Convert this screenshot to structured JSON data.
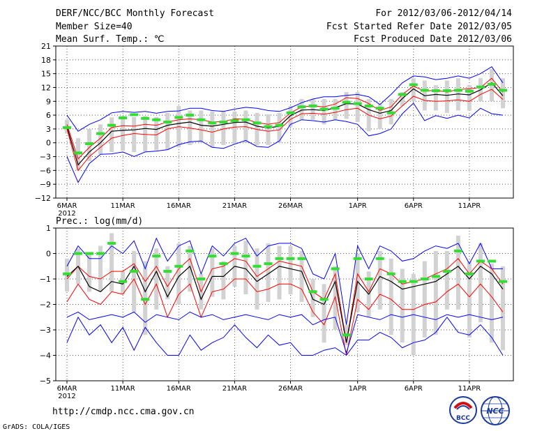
{
  "header": {
    "left1": "DERF/NCC/BCC Monthly Forecast",
    "left2": "Member Size=40",
    "left3": "Mean Surf. Temp.: ℃",
    "right1": "For 2012/03/06-2012/04/14",
    "right2": "Fcst Started Refer Date 2012/03/05",
    "right3": "Fcst Produced Date 2012/03/06"
  },
  "footer": {
    "url": "http://cmdp.ncc.cma.gov.cn",
    "credit": "GrADS: COLA/IGES",
    "logo1_text": "BCC",
    "logo2_text": "NCC"
  },
  "colors": {
    "mean": "#000000",
    "pct": "#ff0000",
    "extreme": "#0000ff",
    "box": "#d2d2d2",
    "obs": "#33dd33",
    "grid": "#555555"
  },
  "chart_data": [
    {
      "type": "line",
      "title": "Mean Surf. Temp.: ℃",
      "x_tick_labels": [
        "6MAR",
        "11MAR",
        "16MAR",
        "21MAR",
        "26MAR",
        "1APR",
        "6APR",
        "11APR"
      ],
      "x_tick_indices": [
        0,
        5,
        10,
        15,
        20,
        26,
        31,
        36
      ],
      "year_label": "2012",
      "ylim": [
        -12,
        21
      ],
      "yticks": [
        -12,
        -9,
        -6,
        -3,
        0,
        3,
        6,
        9,
        12,
        15,
        18,
        21
      ],
      "ytick_labels": [
        "−12",
        "−9",
        "−6",
        "−3",
        "0",
        "3",
        "6",
        "9",
        "12",
        "15",
        "18",
        "21"
      ],
      "days": 40,
      "series": [
        {
          "name": "max",
          "color": "#0000ff",
          "values": [
            6,
            2.5,
            4,
            5,
            6.5,
            6.8,
            6.6,
            6.8,
            6.4,
            6.8,
            6.9,
            7.5,
            7.5,
            7,
            6.8,
            7.3,
            7.7,
            7.5,
            7,
            6.8,
            7.6,
            8.7,
            9.5,
            10,
            10,
            10.3,
            10.5,
            10,
            8.3,
            10.5,
            13,
            14.5,
            14.3,
            13.7,
            14,
            14.5,
            14,
            15,
            16.5,
            13
          ]
        },
        {
          "name": "p75",
          "color": "#ff0000",
          "values": [
            4,
            -3.5,
            -1,
            1,
            3.3,
            3.7,
            3.6,
            4,
            3.8,
            4.5,
            5,
            5.2,
            5,
            4.5,
            4.6,
            5.2,
            5.1,
            4.4,
            4,
            4.4,
            6.5,
            7.8,
            8,
            7.8,
            8.4,
            9.8,
            9.6,
            8.5,
            7,
            7.8,
            10.5,
            12.3,
            11.2,
            11.4,
            11,
            11.6,
            11.7,
            12,
            14,
            11
          ]
        },
        {
          "name": "mean",
          "color": "#000000",
          "values": [
            3.5,
            -4.8,
            -2,
            0,
            2.5,
            2.7,
            2.8,
            3.1,
            2.9,
            3.8,
            4.2,
            4.5,
            3.8,
            3.6,
            4,
            4.4,
            4.5,
            3.6,
            3.2,
            3.6,
            5.9,
            7.1,
            7.2,
            7,
            7.6,
            8.5,
            8.4,
            7.2,
            6.4,
            7,
            9.6,
            11.7,
            10.2,
            10.5,
            10.3,
            10.6,
            10.4,
            11.5,
            13,
            10.2
          ]
        },
        {
          "name": "p25",
          "color": "#ff0000",
          "values": [
            3,
            -6,
            -3,
            -1,
            1,
            1.6,
            2,
            1.8,
            1.7,
            3,
            3.5,
            3.2,
            2.8,
            2.3,
            3,
            3.4,
            3.5,
            2.9,
            2.5,
            2.8,
            5.1,
            6.3,
            6.4,
            6.2,
            6.6,
            7.2,
            7.5,
            6,
            5.2,
            5.8,
            8,
            10.1,
            9.2,
            9,
            9.1,
            9.3,
            9,
            10.5,
            11.6,
            9.4
          ]
        },
        {
          "name": "min",
          "color": "#0000ff",
          "values": [
            -3,
            -8.6,
            -4.5,
            -2.5,
            -2.4,
            -2,
            -3,
            -2,
            -1.8,
            -1.5,
            -0.4,
            0.2,
            0.4,
            -1,
            -1.2,
            -0.3,
            0.5,
            -0.8,
            -1,
            0.4,
            4,
            5,
            4.8,
            4.5,
            5,
            4.6,
            4,
            1.5,
            2,
            3,
            6.3,
            8.6,
            4.8,
            5.9,
            5.3,
            6,
            5.4,
            7.5,
            6.3,
            6
          ]
        }
      ],
      "boxes_low": [
        2,
        -6,
        -4,
        -2.5,
        -2,
        -1.7,
        -2,
        -1.9,
        -1.6,
        -1.5,
        -1,
        -0.5,
        0,
        -1,
        -0.5,
        -0.3,
        0,
        -0.5,
        -0.5,
        0,
        3.5,
        5,
        5,
        4,
        5,
        5.2,
        4.5,
        2.5,
        3,
        4,
        8,
        9,
        7,
        7,
        6.5,
        7,
        7,
        9,
        9,
        7.5
      ],
      "boxes_high": [
        5,
        1,
        3,
        4,
        5.5,
        5.8,
        5.6,
        5.8,
        5.6,
        6.5,
        8,
        7,
        7,
        6.8,
        6.8,
        6.8,
        7,
        6.5,
        6.2,
        6.5,
        8,
        9.5,
        9.5,
        9.5,
        9.5,
        11,
        11,
        9.5,
        8.5,
        9.5,
        11,
        14,
        13.5,
        12.5,
        13.5,
        14,
        12.5,
        14,
        16,
        14
      ],
      "observed": [
        3.3,
        -2.2,
        -0.2,
        2,
        3.8,
        5.4,
        6.1,
        5.3,
        5,
        4.5,
        5.5,
        6,
        5,
        4.3,
        4.5,
        4.8,
        5,
        4.3,
        3.5,
        3.8,
        6.5,
        7.8,
        8,
        7.3,
        7.5,
        8.8,
        8.5,
        8,
        7.5,
        6.5,
        10.5,
        12.6,
        11.4,
        11.3,
        11.3,
        11.4,
        11.2,
        12.1,
        12.7,
        11.4
      ]
    },
    {
      "type": "line",
      "title": "Prec.: log(mm/d)",
      "x_tick_labels": [
        "6MAR",
        "11MAR",
        "16MAR",
        "21MAR",
        "26MAR",
        "1APR",
        "6APR",
        "11APR"
      ],
      "x_tick_indices": [
        0,
        5,
        10,
        15,
        20,
        26,
        31,
        36
      ],
      "year_label": "2012",
      "ylim": [
        -5,
        1
      ],
      "yticks": [
        -5,
        -4,
        -3,
        -2,
        -1,
        0,
        1
      ],
      "ytick_labels": [
        "−5",
        "−4",
        "−3",
        "−2",
        "−1",
        "0",
        "1"
      ],
      "days": 40,
      "series": [
        {
          "name": "max",
          "color": "#0000ff",
          "values": [
            -0.5,
            0.3,
            -0.2,
            -0.2,
            0.3,
            0,
            0.5,
            -0.6,
            0.6,
            -0.3,
            0.3,
            0.5,
            -0.8,
            0.3,
            -0.1,
            0.4,
            0.6,
            -0.1,
            0.3,
            0.4,
            0.4,
            0.2,
            -0.8,
            -1,
            0,
            -2.8,
            0.3,
            -0.6,
            0.3,
            0.1,
            -0.3,
            -0.2,
            0.1,
            0.3,
            0.2,
            0.4,
            -0.4,
            0.4,
            -0.6,
            -0.6
          ]
        },
        {
          "name": "p75",
          "color": "#ff0000",
          "values": [
            -1,
            -0.5,
            -0.9,
            -1,
            -0.7,
            -0.7,
            -0.4,
            -1.1,
            -0.5,
            -1.3,
            -0.6,
            -0.2,
            -1.5,
            -0.6,
            -0.5,
            -0.2,
            -0.3,
            -0.9,
            -0.6,
            -0.3,
            -0.4,
            -0.5,
            -1.5,
            -1.8,
            -0.8,
            -3.5,
            -0.8,
            -1.5,
            -0.6,
            -0.8,
            -1.2,
            -1.1,
            -1,
            -0.8,
            -0.6,
            -0.2,
            -0.8,
            -0.3,
            -0.6,
            -1.2
          ]
        },
        {
          "name": "mean",
          "color": "#000000",
          "values": [
            -0.9,
            -0.5,
            -1.3,
            -1.5,
            -1.1,
            -1.2,
            -0.5,
            -1.5,
            -0.7,
            -1.7,
            -0.9,
            -0.5,
            -1.8,
            -0.9,
            -0.9,
            -0.5,
            -0.6,
            -1.1,
            -0.8,
            -0.5,
            -0.6,
            -0.7,
            -1.8,
            -2,
            -1.1,
            -3.5,
            -1.1,
            -1.6,
            -0.9,
            -1.1,
            -1.4,
            -1.3,
            -1.2,
            -1.1,
            -0.8,
            -0.5,
            -1,
            -0.5,
            -0.8,
            -1.4
          ]
        },
        {
          "name": "p25",
          "color": "#ff0000",
          "values": [
            -1.9,
            -1.2,
            -1.8,
            -2,
            -1.5,
            -1.6,
            -1,
            -2,
            -1.2,
            -2.5,
            -1.6,
            -1.2,
            -2.5,
            -1.5,
            -1.4,
            -1,
            -1,
            -1.5,
            -1.4,
            -1.2,
            -1.2,
            -1.4,
            -2.3,
            -2.8,
            -1.7,
            -4,
            -1.8,
            -2.2,
            -1.6,
            -1.8,
            -2.2,
            -2.2,
            -2,
            -1.9,
            -1.5,
            -1.2,
            -1.7,
            -1.2,
            -1.7,
            -2.3
          ]
        },
        {
          "name": "min",
          "color": "#0000ff",
          "values": [
            -3.5,
            -2.5,
            -3.2,
            -2.8,
            -3.5,
            -2.9,
            -3.8,
            -2.9,
            -3.5,
            -4,
            -4,
            -3.2,
            -3.8,
            -3.5,
            -3.3,
            -2.8,
            -3.3,
            -3.7,
            -3.2,
            -3.6,
            -3.5,
            -4,
            -4,
            -3.8,
            -3.7,
            -4,
            -3.4,
            -3.4,
            -3.1,
            -3.3,
            -3.7,
            -3.5,
            -3.4,
            -3.1,
            -2.5,
            -3.1,
            -3.2,
            -2.8,
            -3.3,
            -4
          ]
        },
        {
          "name": "single",
          "color": "#0000ff",
          "values": [
            -2.5,
            -2.3,
            -2.6,
            -2.5,
            -2.4,
            -2.5,
            -2.3,
            -2.7,
            -2.4,
            -2.5,
            -2.6,
            -2.3,
            -2.5,
            -2.4,
            -2.6,
            -2.5,
            -2.4,
            -2.5,
            -2.6,
            -2.4,
            -2.5,
            -2.4,
            -2.8,
            -2.6,
            -2.5,
            -3.9,
            -2.4,
            -2.5,
            -2.6,
            -2.4,
            -2.5,
            -2.4,
            -2.5,
            -2.6,
            -2.4,
            -2.5,
            -2.4,
            -2.5,
            -2.6,
            -2.5
          ]
        }
      ],
      "boxes_low": [
        -1.5,
        -1.2,
        -1.5,
        -1.5,
        -1.5,
        -1.6,
        -2.3,
        -3.2,
        -2.2,
        -1.8,
        -2,
        -1.5,
        -2.2,
        -1.7,
        -1.8,
        -1.3,
        -1.6,
        -2.2,
        -1.9,
        -1.8,
        -1.6,
        -1.9,
        -2.5,
        -3.5,
        -3,
        -3.6,
        -2.3,
        -2.5,
        -2.2,
        -3.2,
        -3.5,
        -4,
        -3.3,
        -3.2,
        -2.2,
        -2.2,
        -3.3,
        -2.7,
        -3.5,
        -3.8
      ],
      "boxes_high": [
        -0.2,
        0.2,
        0,
        0.3,
        0.8,
        -0.7,
        0.1,
        -0.3,
        0.2,
        -0.5,
        0.4,
        0.3,
        -0.8,
        0.2,
        -0.3,
        0.3,
        0.5,
        0.2,
        0.4,
        0.3,
        0.3,
        0.1,
        -1,
        -1.2,
        -0.5,
        -2.8,
        0,
        -0.7,
        0.1,
        -0.2,
        -0.6,
        -0.8,
        -0.3,
        0.1,
        0.1,
        0.7,
        -0.3,
        0.4,
        -0.4,
        -0.5
      ],
      "observed": [
        -0.8,
        0,
        0,
        0,
        0.4,
        -1.1,
        -0.7,
        -1.8,
        -0.1,
        -0.7,
        -0.5,
        0.1,
        -1,
        -0.1,
        -0.4,
        0,
        -0.1,
        -0.5,
        -0.4,
        -0.2,
        -0.2,
        -0.2,
        -1.5,
        -1.8,
        -0.6,
        -3.2,
        -0.2,
        -1,
        -0.2,
        -0.8,
        -1.1,
        -1.1,
        -1,
        -0.9,
        -0.7,
        0.1,
        -0.8,
        -0.3,
        -0.3,
        -1.1
      ]
    }
  ]
}
